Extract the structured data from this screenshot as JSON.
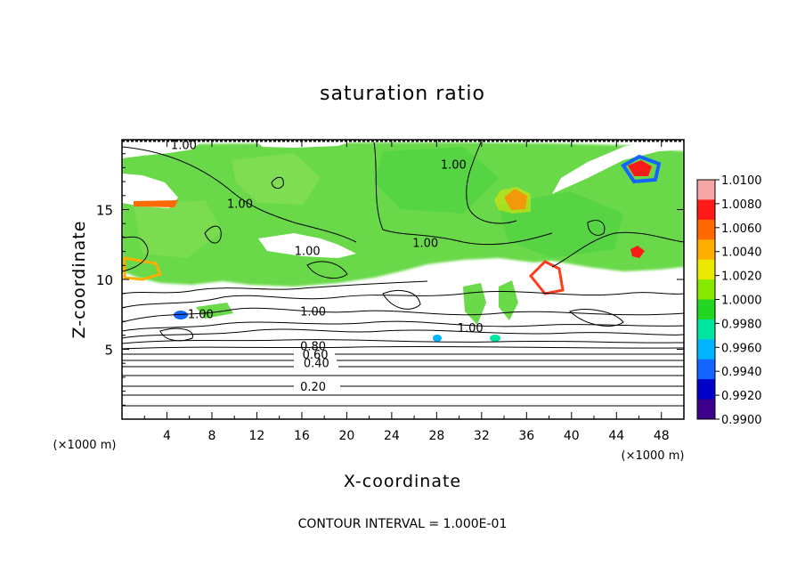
{
  "chart_data": {
    "type": "heatmap",
    "title": "saturation ratio",
    "xlabel": "X-coordinate",
    "ylabel": "Z-coordinate",
    "x_unit": "(×1000 m)",
    "z_unit": "(×1000 m)",
    "xlim": [
      0,
      50
    ],
    "ylim": [
      0,
      20
    ],
    "x_ticks": [
      "4",
      "8",
      "12",
      "16",
      "20",
      "24",
      "28",
      "32",
      "36",
      "40",
      "44",
      "48"
    ],
    "y_ticks": [
      "5",
      "10",
      "15"
    ],
    "footnote": "CONTOUR INTERVAL = 1.000E-01",
    "colorbar": {
      "labels": [
        "1.0100",
        "1.0080",
        "1.0060",
        "1.0040",
        "1.0020",
        "1.0000",
        "0.9980",
        "0.9960",
        "0.9940",
        "0.9920",
        "0.9900"
      ],
      "colors": [
        "#f4a6a6",
        "#ff1a1a",
        "#ff6a00",
        "#ffae00",
        "#e8e800",
        "#86e800",
        "#22d622",
        "#00e6a0",
        "#00b4ff",
        "#1464ff",
        "#0000c8",
        "#3c008c"
      ]
    },
    "contour_labels": [
      {
        "text": "1.00",
        "x": 5.5,
        "z": 19.4
      },
      {
        "text": "1.00",
        "x": 10.5,
        "z": 15.2
      },
      {
        "text": "1.00",
        "x": 29.5,
        "z": 18.0
      },
      {
        "text": "1.00",
        "x": 27.0,
        "z": 12.4
      },
      {
        "text": "1.00",
        "x": 16.5,
        "z": 11.8
      },
      {
        "text": "1.00",
        "x": 17.0,
        "z": 7.5
      },
      {
        "text": "1.00",
        "x": 7.0,
        "z": 7.3
      },
      {
        "text": "1.00",
        "x": 31.0,
        "z": 6.3
      },
      {
        "text": "0.80",
        "x": 17.0,
        "z": 5.0
      },
      {
        "text": "0.60",
        "x": 17.2,
        "z": 4.4
      },
      {
        "text": "0.40",
        "x": 17.3,
        "z": 3.8
      },
      {
        "text": "0.20",
        "x": 17.0,
        "z": 2.1
      }
    ]
  }
}
